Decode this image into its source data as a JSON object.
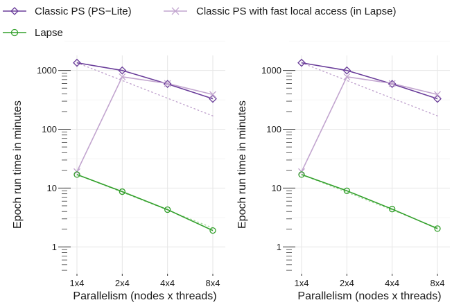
{
  "legend": [
    {
      "label": "Classic PS (PS−Lite)",
      "color": "#6a3d9a",
      "marker": "diamond"
    },
    {
      "label": "Classic PS with fast local access (in Lapse)",
      "color": "#c2a5cf",
      "marker": "x"
    },
    {
      "label": "Lapse",
      "color": "#33a02c",
      "marker": "circle"
    }
  ],
  "chart_data": [
    {
      "type": "line",
      "title": "",
      "xlabel": "Parallelism (nodes x threads)",
      "ylabel": "Epoch run time in minutes",
      "yscale": "log",
      "ylim": [
        0.35,
        1800
      ],
      "yticks": [
        1,
        10,
        100,
        1000
      ],
      "grid": true,
      "legend_position": "top",
      "categories": [
        "1x4",
        "2x4",
        "4x4",
        "8x4"
      ],
      "series": [
        {
          "name": "Classic PS (PS−Lite)",
          "color": "#6a3d9a",
          "marker": "diamond",
          "values": [
            1350,
            1000,
            590,
            330
          ]
        },
        {
          "name": "Classic PS with fast local access (in Lapse)",
          "color": "#c2a5cf",
          "marker": "x",
          "values": [
            19,
            780,
            600,
            390
          ]
        },
        {
          "name": "Lapse",
          "color": "#33a02c",
          "marker": "circle",
          "values": [
            17,
            8.7,
            4.3,
            1.9
          ]
        }
      ],
      "reference_lines": [
        {
          "color": "#c2a5cf",
          "values": [
            1350,
            675,
            337,
            169
          ]
        },
        {
          "color": "#a6d99e",
          "values": [
            17,
            8.5,
            4.25,
            2.1
          ]
        }
      ]
    },
    {
      "type": "line",
      "title": "",
      "xlabel": "Parallelism (nodes x threads)",
      "ylabel": "Epoch run time in minutes",
      "yscale": "log",
      "ylim": [
        0.35,
        1800
      ],
      "yticks": [
        1,
        10,
        100,
        1000
      ],
      "grid": true,
      "legend_position": "top",
      "categories": [
        "1x4",
        "2x4",
        "4x4",
        "8x4"
      ],
      "series": [
        {
          "name": "Classic PS (PS−Lite)",
          "color": "#6a3d9a",
          "marker": "diamond",
          "values": [
            1350,
            1000,
            590,
            330
          ]
        },
        {
          "name": "Classic PS with fast local access (in Lapse)",
          "color": "#c2a5cf",
          "marker": "x",
          "values": [
            19,
            780,
            600,
            390
          ]
        },
        {
          "name": "Lapse",
          "color": "#33a02c",
          "marker": "circle",
          "values": [
            17,
            9.0,
            4.4,
            2.05
          ]
        }
      ],
      "reference_lines": [
        {
          "color": "#c2a5cf",
          "values": [
            1350,
            675,
            337,
            169
          ]
        },
        {
          "color": "#a6d99e",
          "values": [
            17,
            8.5,
            4.25,
            2.1
          ]
        }
      ]
    }
  ]
}
